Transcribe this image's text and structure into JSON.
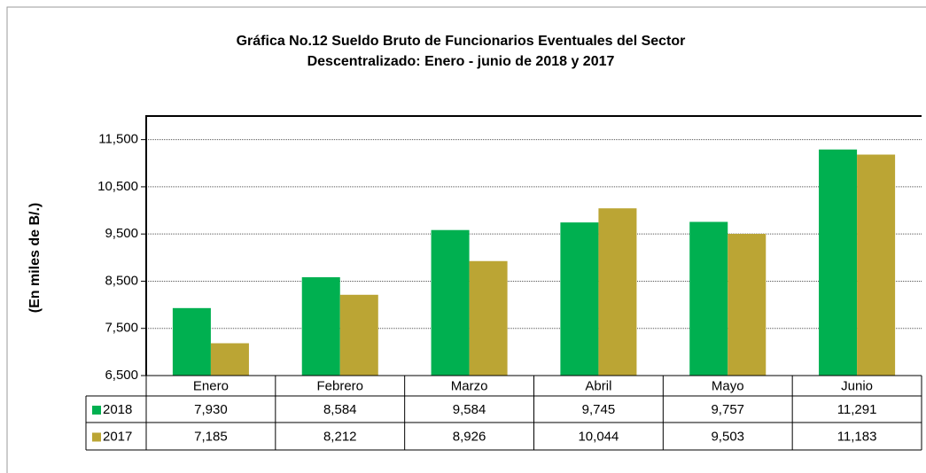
{
  "chart_data": {
    "type": "bar",
    "title": "Gráfica No.12 Sueldo Bruto de Funcionarios Eventuales del Sector",
    "subtitle": "Descentralizado: Enero - junio de 2018 y 2017",
    "y_label": "(En miles de B/.)",
    "categories": [
      "Enero",
      "Febrero",
      "Marzo",
      "Abril",
      "Mayo",
      "Junio"
    ],
    "series": [
      {
        "name": "2018",
        "color": "#00b050",
        "values": [
          7930,
          8584,
          9584,
          9745,
          9757,
          11291
        ],
        "value_labels": [
          "7,930",
          "8,584",
          "9,584",
          "9,745",
          "9,757",
          "11,291"
        ]
      },
      {
        "name": "2017",
        "color": "#bba534",
        "values": [
          7185,
          8212,
          8926,
          10044,
          9503,
          11183
        ],
        "value_labels": [
          "7,185",
          "8,212",
          "8,926",
          "10,044",
          "9,503",
          "11,183"
        ]
      }
    ],
    "ylim": [
      6500,
      12000
    ],
    "yticks": [
      {
        "value": 6500,
        "label": "6,500"
      },
      {
        "value": 7500,
        "label": "7,500"
      },
      {
        "value": 8500,
        "label": "8,500"
      },
      {
        "value": 9500,
        "label": "9,500"
      },
      {
        "value": 10500,
        "label": "10,500"
      },
      {
        "value": 11500,
        "label": "11,500"
      }
    ],
    "grid": true
  }
}
